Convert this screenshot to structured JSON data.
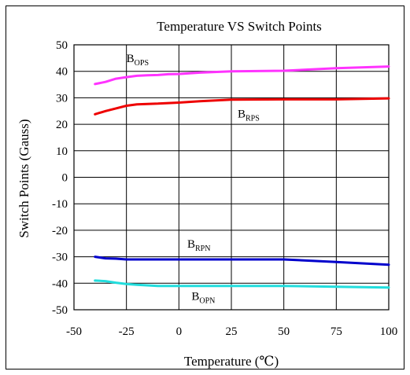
{
  "chart_data": {
    "type": "line",
    "title": "Temperature VS Switch Points",
    "xlabel": "Temperature (℃)",
    "ylabel": "Switch Points  (Gauss)",
    "xlim": [
      -50,
      100
    ],
    "ylim": [
      -50,
      50
    ],
    "x_ticks": [
      -50,
      -25,
      0,
      25,
      50,
      75,
      100
    ],
    "y_ticks": [
      50,
      40,
      30,
      20,
      10,
      0,
      -10,
      -20,
      -30,
      -40,
      -50
    ],
    "grid": true,
    "series": [
      {
        "name": "B_OPS",
        "label_main": "B",
        "label_sub": "OPS",
        "color": "#ff33ff",
        "x": [
          -40,
          -35,
          -30,
          -25,
          -20,
          -15,
          -10,
          -5,
          0,
          10,
          25,
          50,
          75,
          100
        ],
        "y": [
          35.2,
          36,
          37.2,
          37.8,
          38.3,
          38.5,
          38.6,
          38.9,
          39,
          39.5,
          40,
          40.2,
          41.2,
          41.8
        ]
      },
      {
        "name": "B_RPS",
        "label_main": "B",
        "label_sub": "RPS",
        "color": "#ee0000",
        "x": [
          -40,
          -35,
          -30,
          -25,
          -20,
          -15,
          -10,
          -5,
          0,
          10,
          25,
          50,
          75,
          100
        ],
        "y": [
          23.8,
          25,
          26,
          27,
          27.5,
          27.7,
          27.8,
          28,
          28.2,
          28.7,
          29.3,
          29.4,
          29.4,
          29.8
        ]
      },
      {
        "name": "B_RPN",
        "label_main": "B",
        "label_sub": "RPN",
        "color": "#0000cc",
        "x": [
          -40,
          -35,
          -30,
          -25,
          0,
          25,
          50,
          75,
          100
        ],
        "y": [
          -30,
          -30.6,
          -30.7,
          -31,
          -31,
          -31,
          -31,
          -32,
          -33
        ]
      },
      {
        "name": "B_OPN",
        "label_main": "B",
        "label_sub": "OPN",
        "color": "#22dddd",
        "x": [
          -40,
          -35,
          -30,
          -25,
          -20,
          -10,
          0,
          25,
          50,
          75,
          100
        ],
        "y": [
          -39,
          -39.2,
          -39.8,
          -40.3,
          -40.6,
          -41,
          -41,
          -41,
          -41,
          -41.3,
          -41.6
        ]
      }
    ]
  }
}
